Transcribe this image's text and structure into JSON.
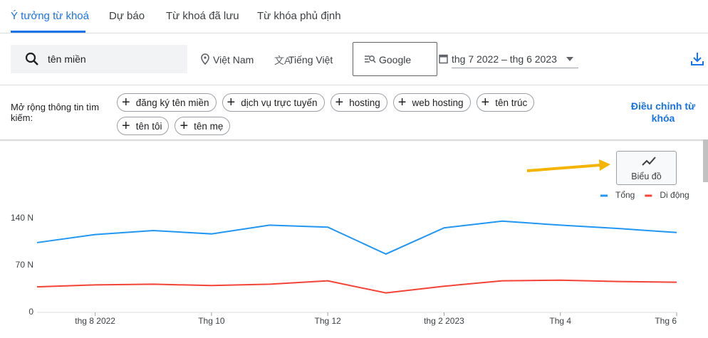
{
  "tabs": [
    "Ý tưởng từ khoá",
    "Dự báo",
    "Từ khoá đã lưu",
    "Từ khóa phủ định"
  ],
  "search": {
    "query": "tên miền",
    "location": "Việt Nam",
    "language": "Tiếng Việt",
    "network": "Google",
    "date_range": "thg 7 2022 – thg 6 2023"
  },
  "refine": {
    "label": "Mở rộng thông tin tìm kiếm:",
    "chips": [
      "đăng ký tên miền",
      "dịch vụ trực tuyến",
      "hosting",
      "web hosting",
      "tên trúc",
      "tên tôi",
      "tên mẹ"
    ],
    "action": "Điều chỉnh từ khóa"
  },
  "chart_button": "Biểu đồ",
  "chart_data": {
    "type": "line",
    "categories": [
      null,
      "thg 8 2022",
      null,
      "Thg 10",
      null,
      "Thg 12",
      null,
      "thg 2 2023",
      null,
      "Thg 4",
      null,
      "Thg 6"
    ],
    "series": [
      {
        "name": "Tổng",
        "color": "#2196f3",
        "values": [
          104,
          116,
          122,
          117,
          130,
          127,
          87,
          126,
          136,
          130,
          125,
          119
        ]
      },
      {
        "name": "Di động",
        "color": "#f44336",
        "values": [
          38,
          41,
          42,
          40,
          42,
          47,
          29,
          39,
          47,
          48,
          46,
          45
        ]
      }
    ],
    "ylim": [
      0,
      140
    ],
    "yticks": [
      0,
      {
        "value": 70,
        "label": "70 N"
      },
      {
        "value": 140,
        "label": "140 N"
      }
    ],
    "grid": false,
    "legend": "top-right"
  }
}
